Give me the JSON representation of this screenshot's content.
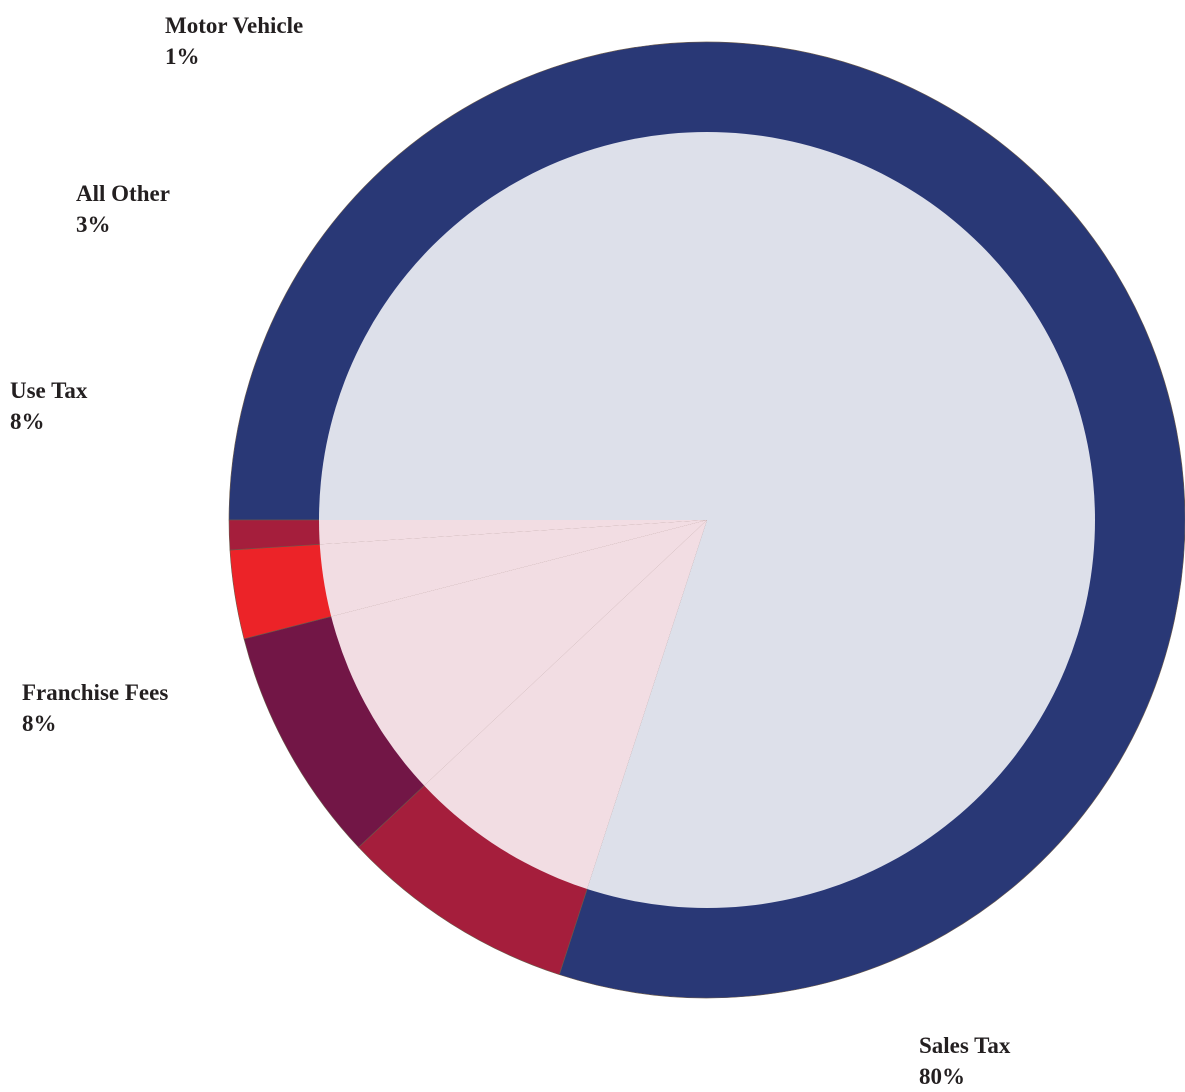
{
  "chart_data": {
    "type": "pie",
    "style": "donut",
    "title": "",
    "slices": [
      {
        "label": "Sales Tax",
        "value": 80,
        "value_label": "80%",
        "color": "#293876"
      },
      {
        "label": "Franchise Fees",
        "value": 8,
        "value_label": "8%",
        "color": "#a51e3c"
      },
      {
        "label": "Use Tax",
        "value": 8,
        "value_label": "8%",
        "color": "#721646"
      },
      {
        "label": "All Other",
        "value": 3,
        "value_label": "3%",
        "color": "#ec2328"
      },
      {
        "label": "Motor Vehicle",
        "value": 1,
        "value_label": "1%",
        "color": "#a51e3c"
      }
    ],
    "start_angle_deg": 180,
    "direction": "counterclockwise",
    "inner_fill_colors": {
      "major": "#dde0ea",
      "minor": "#f2dde3"
    }
  }
}
